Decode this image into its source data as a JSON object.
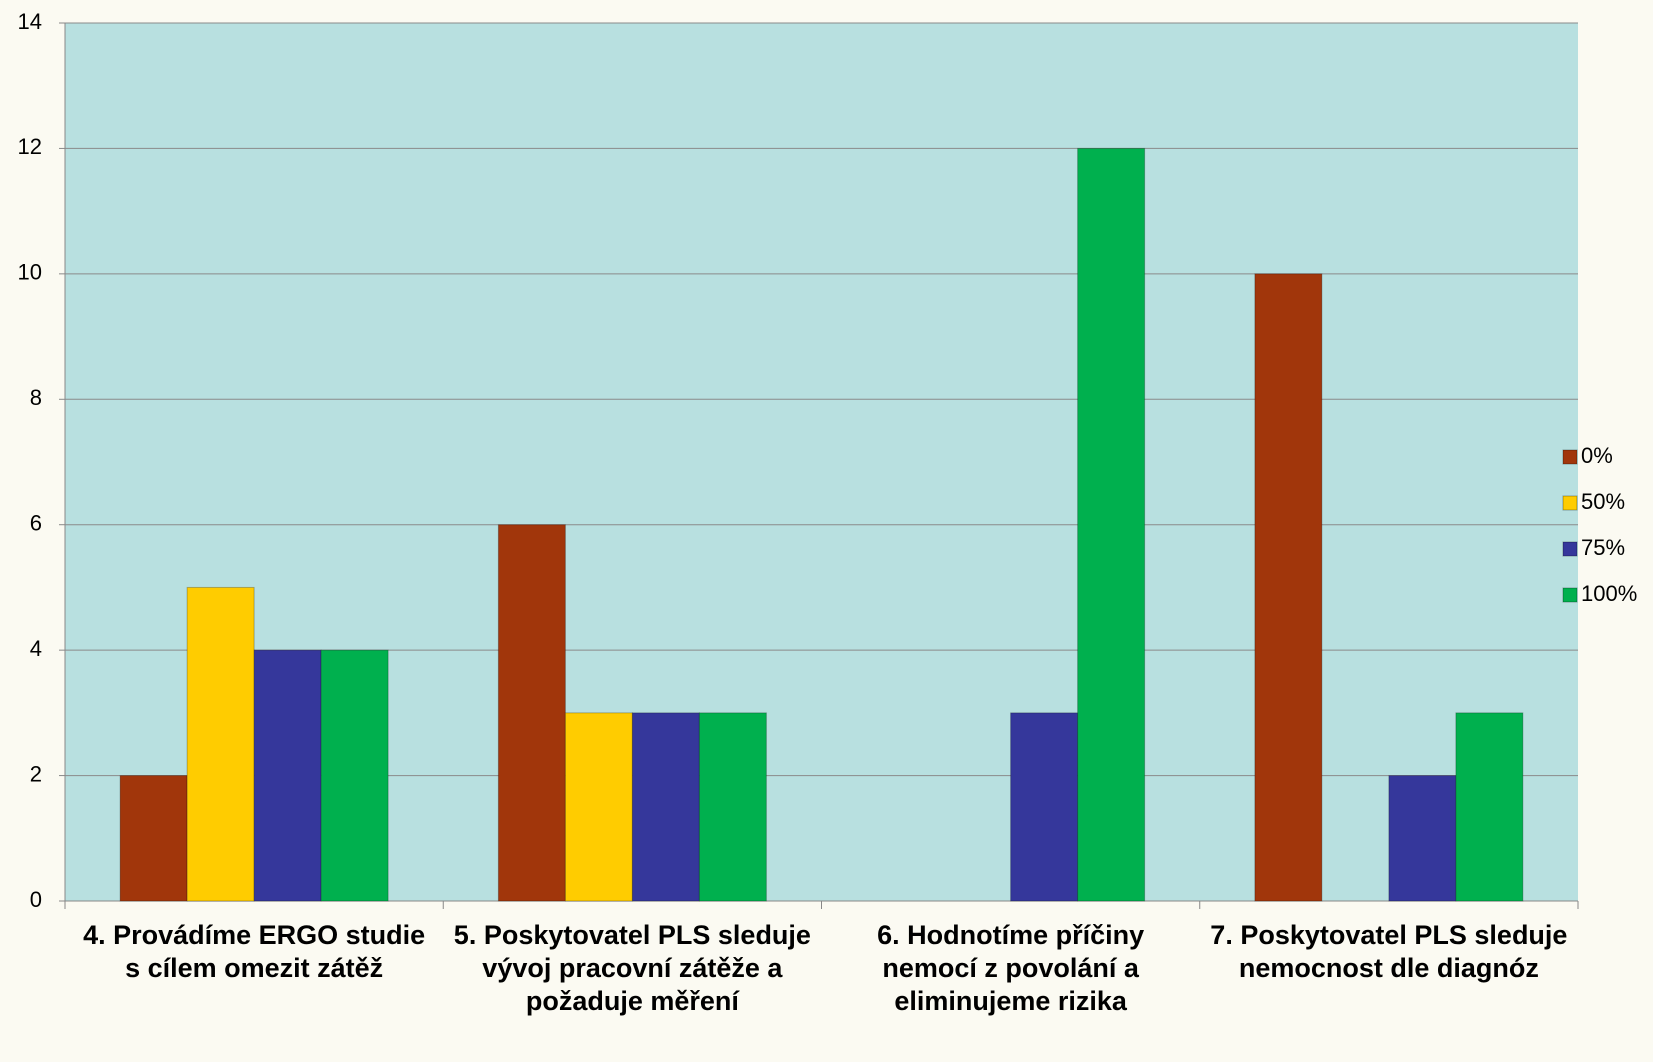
{
  "chart_data": {
    "type": "bar",
    "categories": [
      "4. Provádíme ERGO studie s cílem omezit zátěž",
      "5. Poskytovatel PLS sleduje vývoj pracovní zátěže a požaduje měření",
      "6. Hodnotíme příčiny nemocí z povolání a eliminujeme rizika",
      "7. Poskytovatel PLS sleduje nemocnost dle diagnóz"
    ],
    "series": [
      {
        "name": "0%",
        "color": "#a1360b",
        "values": [
          2,
          6,
          0,
          10
        ]
      },
      {
        "name": "50%",
        "color": "#ffcc00",
        "values": [
          5,
          3,
          0,
          0
        ]
      },
      {
        "name": "75%",
        "color": "#35379b",
        "values": [
          4,
          3,
          3,
          2
        ]
      },
      {
        "name": "100%",
        "color": "#00b04e",
        "values": [
          4,
          3,
          12,
          3
        ]
      }
    ],
    "ylim": [
      0,
      14
    ],
    "yticks": [
      0,
      2,
      4,
      6,
      8,
      10,
      12,
      14
    ],
    "grid": true,
    "legend": "right"
  }
}
